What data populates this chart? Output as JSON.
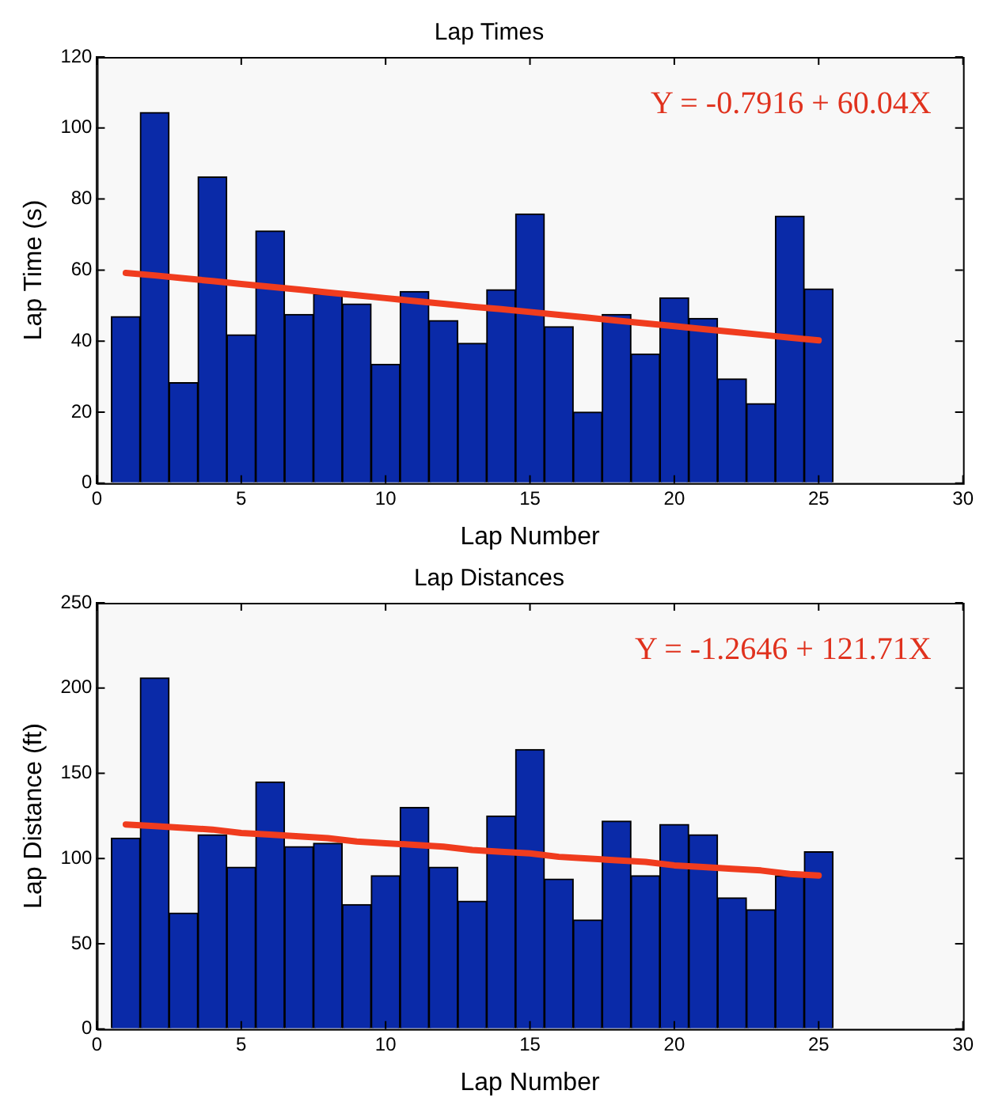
{
  "chart_data": [
    {
      "type": "bar",
      "title": "Lap Times",
      "xlabel": "Lap Number",
      "ylabel": "Lap Time (s)",
      "x": [
        1,
        2,
        3,
        4,
        5,
        6,
        7,
        8,
        9,
        10,
        11,
        12,
        13,
        14,
        15,
        16,
        17,
        18,
        19,
        20,
        21,
        22,
        23,
        24,
        25
      ],
      "series": [
        {
          "color": "#0a2aa8",
          "values": [
            46.9,
            104.4,
            28.3,
            86.2,
            41.8,
            71,
            47.5,
            53.3,
            50.5,
            33.5,
            54,
            45.8,
            39.4,
            54.5,
            75.8,
            44.1,
            20,
            47.5,
            36.4,
            52.2,
            46.4,
            29.4,
            22.4,
            75.2,
            54.7
          ]
        },
        {
          "type": "line",
          "color": "#f03c1e",
          "values": [
            59.2,
            58.5,
            57.7,
            56.9,
            56.1,
            55.3,
            54.5,
            53.7,
            52.9,
            52.1,
            51.3,
            50.5,
            49.7,
            49.0,
            48.2,
            47.4,
            46.6,
            45.8,
            45.0,
            44.2,
            43.4,
            42.6,
            41.8,
            41.0,
            40.2
          ]
        }
      ],
      "xlim": [
        0,
        30
      ],
      "xticks": [
        0,
        5,
        10,
        15,
        20,
        25,
        30
      ],
      "ylim": [
        0,
        120
      ],
      "yticks": [
        0,
        20,
        40,
        60,
        80,
        100,
        120
      ],
      "annotations": [
        "Y = -0.7916 + 60.04X"
      ]
    },
    {
      "type": "bar",
      "title": "Lap Distances",
      "xlabel": "Lap Number",
      "ylabel": "Lap Distance (ft)",
      "x": [
        1,
        2,
        3,
        4,
        5,
        6,
        7,
        8,
        9,
        10,
        11,
        12,
        13,
        14,
        15,
        16,
        17,
        18,
        19,
        20,
        21,
        22,
        23,
        24,
        25
      ],
      "series": [
        {
          "color": "#0a2aa8",
          "values": [
            112,
            206,
            68,
            114,
            95,
            145,
            107,
            109,
            73,
            90,
            130,
            95,
            75,
            125,
            164,
            88,
            64,
            122,
            90,
            120,
            114,
            77,
            70,
            90,
            104
          ]
        },
        {
          "type": "line",
          "color": "#f03c1e",
          "values": [
            120,
            119,
            118,
            117,
            115,
            114,
            113,
            112,
            110,
            109,
            108,
            107,
            105,
            104,
            103,
            101,
            100,
            99,
            98,
            96,
            95,
            94,
            93,
            91,
            90
          ]
        }
      ],
      "xlim": [
        0,
        30
      ],
      "xticks": [
        0,
        5,
        10,
        15,
        20,
        25,
        30
      ],
      "ylim": [
        0,
        250
      ],
      "yticks": [
        0,
        50,
        100,
        150,
        200,
        250
      ],
      "annotations": [
        "Y = -1.2646 + 121.71X"
      ]
    }
  ]
}
